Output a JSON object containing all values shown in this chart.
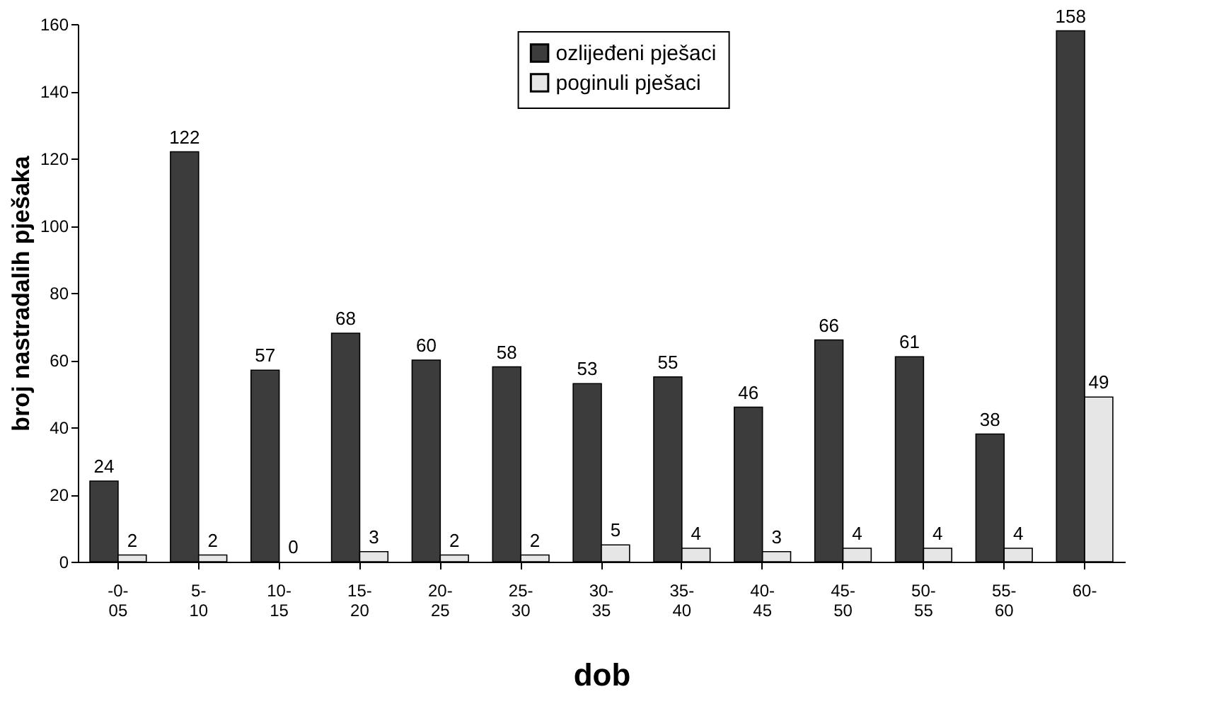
{
  "chart_data": {
    "type": "bar",
    "xlabel": "dob",
    "ylabel": "broj nastradalih pješaka",
    "categories": [
      "-0-\n05",
      "5-\n10",
      "10-\n15",
      "15-\n20",
      "20-\n25",
      "25-\n30",
      "30-\n35",
      "35-\n40",
      "40-\n45",
      "45-\n50",
      "50-\n55",
      "55-\n60",
      "60-"
    ],
    "series": [
      {
        "name": "ozlijeđeni pješaci",
        "color": "#3c3c3c",
        "values": [
          24,
          122,
          57,
          68,
          60,
          58,
          53,
          55,
          46,
          66,
          61,
          38,
          158
        ]
      },
      {
        "name": "poginuli pješaci",
        "color": "#e6e6e6",
        "values": [
          2,
          2,
          0,
          3,
          2,
          2,
          5,
          4,
          3,
          4,
          4,
          4,
          49
        ]
      }
    ],
    "ylim": [
      0,
      160
    ],
    "yticks": [
      0,
      20,
      40,
      60,
      80,
      100,
      120,
      140,
      160
    ],
    "data_labels": true,
    "grid": false,
    "legend": "top"
  }
}
